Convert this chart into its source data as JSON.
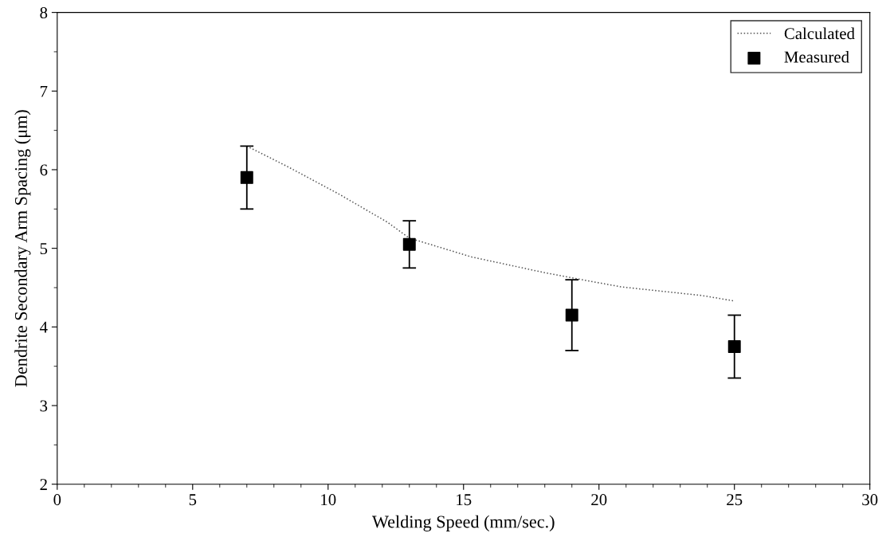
{
  "chart_data": {
    "type": "scatter",
    "xlabel": "Welding Speed (mm/sec.)",
    "ylabel": "Dendrite Secondary Arm Spacing (μm)",
    "xlim": [
      0,
      30
    ],
    "xticks": [
      0,
      5,
      10,
      15,
      20,
      25,
      30
    ],
    "ylim": [
      2,
      8
    ],
    "yticks": [
      2,
      3,
      4,
      5,
      6,
      7,
      8
    ],
    "grid": false,
    "legend": "top right",
    "series": [
      {
        "name": "Calculated",
        "type": "line",
        "color": "#555555",
        "line_style": "dotted",
        "marker": "none",
        "x": [
          7,
          8.5,
          10.4,
          12.2,
          13,
          15.3,
          18,
          20.8,
          23.8,
          25
        ],
        "values": [
          6.3,
          6.04,
          5.69,
          5.33,
          5.13,
          4.89,
          4.69,
          4.51,
          4.4,
          4.33
        ]
      },
      {
        "name": "Measured",
        "color": "#000000",
        "marker": "square",
        "x": [
          7,
          13,
          19,
          25
        ],
        "values": [
          5.9,
          5.05,
          4.15,
          3.75
        ],
        "errors": [
          0.4,
          0.3,
          0.45,
          0.4
        ]
      }
    ]
  }
}
